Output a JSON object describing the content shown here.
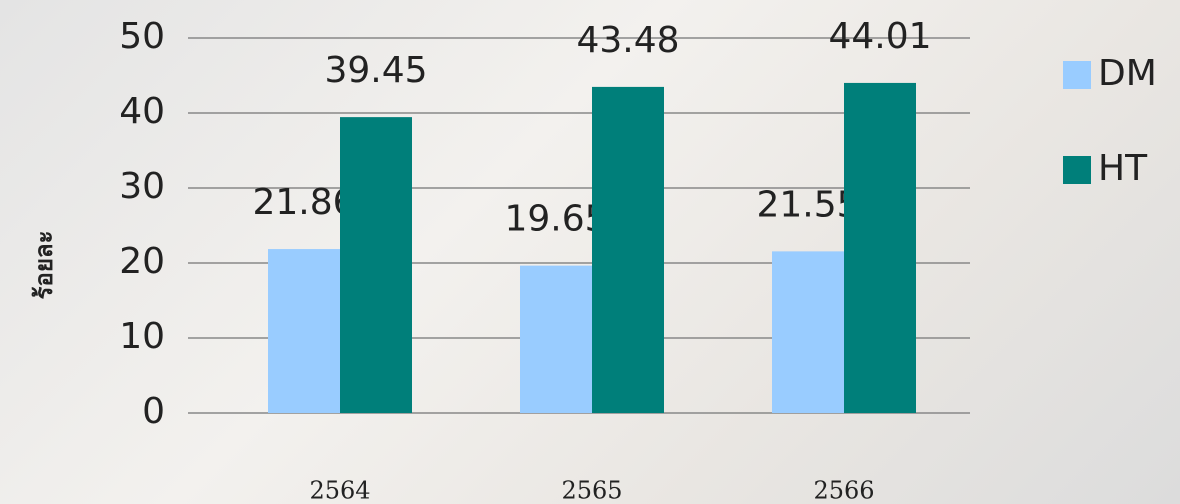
{
  "chart_data": {
    "type": "bar",
    "y_label": "ร้อยละ",
    "categories": [
      "2564",
      "2565",
      "2566"
    ],
    "series": [
      {
        "name": "DM",
        "color": "#99ccff",
        "values": [
          21.86,
          19.65,
          21.55
        ]
      },
      {
        "name": "HT",
        "color": "#007f7a",
        "values": [
          39.45,
          43.48,
          44.01
        ]
      }
    ],
    "ylim": [
      0,
      50
    ],
    "yticks": [
      0,
      10,
      20,
      30,
      40,
      50
    ],
    "grid": true,
    "legend": "right"
  }
}
